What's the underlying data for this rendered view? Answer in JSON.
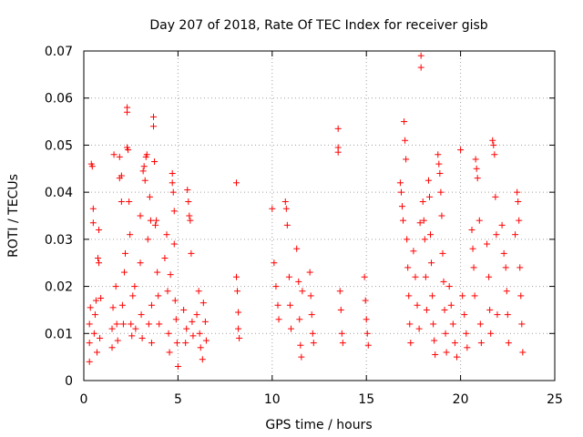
{
  "chart_data": {
    "type": "scatter",
    "title": "Day 207 of 2018, Rate Of TEC Index for receiver gisb",
    "xlabel": "GPS time / hours",
    "ylabel": "ROTI / TECUs",
    "xlim": [
      0,
      25
    ],
    "ylim": [
      0,
      0.07
    ],
    "xticks": [
      0,
      5,
      10,
      15,
      20,
      25
    ],
    "xtick_labels": [
      "0",
      "5",
      "10",
      "15",
      "20",
      "25"
    ],
    "yticks": [
      0,
      0.01,
      0.02,
      0.03,
      0.04,
      0.05,
      0.06,
      0.07
    ],
    "ytick_labels": [
      "0",
      "0.01",
      "0.02",
      "0.03",
      "0.04",
      "0.05",
      "0.06",
      "0.07"
    ],
    "grid": true,
    "marker": "+",
    "color": "#ff0000",
    "series": [
      {
        "points": [
          [
            0.3,
            0.004
          ],
          [
            0.3,
            0.008
          ],
          [
            0.3,
            0.012
          ],
          [
            0.35,
            0.0155
          ],
          [
            0.4,
            0.046
          ],
          [
            0.45,
            0.0455
          ],
          [
            0.5,
            0.0365
          ],
          [
            0.5,
            0.0335
          ],
          [
            0.55,
            0.01
          ],
          [
            0.6,
            0.014
          ],
          [
            0.65,
            0.017
          ],
          [
            0.7,
            0.006
          ],
          [
            0.75,
            0.026
          ],
          [
            0.8,
            0.025
          ],
          [
            0.8,
            0.032
          ],
          [
            0.85,
            0.009
          ],
          [
            0.9,
            0.0175
          ],
          [
            1.5,
            0.007
          ],
          [
            1.5,
            0.011
          ],
          [
            1.55,
            0.0155
          ],
          [
            1.6,
            0.048
          ],
          [
            1.7,
            0.02
          ],
          [
            1.75,
            0.012
          ],
          [
            1.8,
            0.0085
          ],
          [
            1.9,
            0.0475
          ],
          [
            1.9,
            0.043
          ],
          [
            2.0,
            0.0435
          ],
          [
            2.0,
            0.038
          ],
          [
            2.05,
            0.016
          ],
          [
            2.1,
            0.012
          ],
          [
            2.15,
            0.023
          ],
          [
            2.2,
            0.027
          ],
          [
            2.3,
            0.058
          ],
          [
            2.3,
            0.057
          ],
          [
            2.3,
            0.0495
          ],
          [
            2.35,
            0.049
          ],
          [
            2.4,
            0.038
          ],
          [
            2.45,
            0.031
          ],
          [
            2.5,
            0.012
          ],
          [
            2.55,
            0.0095
          ],
          [
            2.6,
            0.018
          ],
          [
            2.7,
            0.02
          ],
          [
            2.75,
            0.011
          ],
          [
            3.0,
            0.025
          ],
          [
            3.0,
            0.035
          ],
          [
            3.05,
            0.014
          ],
          [
            3.1,
            0.009
          ],
          [
            3.15,
            0.0445
          ],
          [
            3.2,
            0.0455
          ],
          [
            3.25,
            0.0425
          ],
          [
            3.3,
            0.0475
          ],
          [
            3.35,
            0.048
          ],
          [
            3.4,
            0.03
          ],
          [
            3.45,
            0.012
          ],
          [
            3.5,
            0.039
          ],
          [
            3.55,
            0.034
          ],
          [
            3.6,
            0.008
          ],
          [
            3.6,
            0.016
          ],
          [
            3.7,
            0.056
          ],
          [
            3.7,
            0.054
          ],
          [
            3.75,
            0.0465
          ],
          [
            3.8,
            0.033
          ],
          [
            3.85,
            0.034
          ],
          [
            3.9,
            0.023
          ],
          [
            3.95,
            0.018
          ],
          [
            4.0,
            0.012
          ],
          [
            4.3,
            0.026
          ],
          [
            4.4,
            0.031
          ],
          [
            4.45,
            0.019
          ],
          [
            4.5,
            0.01
          ],
          [
            4.55,
            0.006
          ],
          [
            4.6,
            0.0225
          ],
          [
            4.7,
            0.044
          ],
          [
            4.7,
            0.042
          ],
          [
            4.75,
            0.04
          ],
          [
            4.8,
            0.036
          ],
          [
            4.8,
            0.029
          ],
          [
            4.85,
            0.017
          ],
          [
            4.9,
            0.013
          ],
          [
            4.95,
            0.008
          ],
          [
            5.0,
            0.003
          ],
          [
            5.3,
            0.015
          ],
          [
            5.4,
            0.008
          ],
          [
            5.45,
            0.011
          ],
          [
            5.5,
            0.0405
          ],
          [
            5.55,
            0.038
          ],
          [
            5.6,
            0.035
          ],
          [
            5.65,
            0.034
          ],
          [
            5.7,
            0.027
          ],
          [
            5.75,
            0.0125
          ],
          [
            5.8,
            0.0095
          ],
          [
            6.0,
            0.014
          ],
          [
            6.1,
            0.019
          ],
          [
            6.15,
            0.01
          ],
          [
            6.2,
            0.007
          ],
          [
            6.3,
            0.0045
          ],
          [
            6.35,
            0.0165
          ],
          [
            6.45,
            0.0125
          ],
          [
            6.5,
            0.0085
          ],
          [
            8.1,
            0.042
          ],
          [
            8.1,
            0.022
          ],
          [
            8.15,
            0.019
          ],
          [
            8.2,
            0.0145
          ],
          [
            8.2,
            0.011
          ],
          [
            8.25,
            0.009
          ],
          [
            10.0,
            0.0365
          ],
          [
            10.1,
            0.025
          ],
          [
            10.2,
            0.02
          ],
          [
            10.3,
            0.016
          ],
          [
            10.35,
            0.013
          ],
          [
            10.7,
            0.038
          ],
          [
            10.75,
            0.0365
          ],
          [
            10.8,
            0.033
          ],
          [
            10.9,
            0.022
          ],
          [
            10.95,
            0.016
          ],
          [
            11.0,
            0.011
          ],
          [
            11.3,
            0.028
          ],
          [
            11.4,
            0.021
          ],
          [
            11.45,
            0.013
          ],
          [
            11.5,
            0.0075
          ],
          [
            11.55,
            0.005
          ],
          [
            11.6,
            0.019
          ],
          [
            12.0,
            0.023
          ],
          [
            12.05,
            0.018
          ],
          [
            12.1,
            0.014
          ],
          [
            12.15,
            0.01
          ],
          [
            12.2,
            0.008
          ],
          [
            13.5,
            0.0535
          ],
          [
            13.5,
            0.0495
          ],
          [
            13.5,
            0.0485
          ],
          [
            13.6,
            0.019
          ],
          [
            13.65,
            0.015
          ],
          [
            13.7,
            0.01
          ],
          [
            13.75,
            0.008
          ],
          [
            14.9,
            0.022
          ],
          [
            14.95,
            0.017
          ],
          [
            15.0,
            0.013
          ],
          [
            15.05,
            0.01
          ],
          [
            15.1,
            0.0075
          ],
          [
            16.8,
            0.042
          ],
          [
            16.85,
            0.04
          ],
          [
            16.9,
            0.037
          ],
          [
            16.95,
            0.034
          ],
          [
            17.0,
            0.055
          ],
          [
            17.05,
            0.051
          ],
          [
            17.1,
            0.047
          ],
          [
            17.15,
            0.03
          ],
          [
            17.2,
            0.024
          ],
          [
            17.25,
            0.018
          ],
          [
            17.3,
            0.012
          ],
          [
            17.35,
            0.008
          ],
          [
            17.5,
            0.0275
          ],
          [
            17.6,
            0.022
          ],
          [
            17.7,
            0.016
          ],
          [
            17.8,
            0.011
          ],
          [
            17.85,
            0.0335
          ],
          [
            17.9,
            0.069
          ],
          [
            17.9,
            0.0665
          ],
          [
            18.0,
            0.038
          ],
          [
            18.05,
            0.034
          ],
          [
            18.1,
            0.03
          ],
          [
            18.15,
            0.022
          ],
          [
            18.2,
            0.015
          ],
          [
            18.3,
            0.0425
          ],
          [
            18.35,
            0.039
          ],
          [
            18.4,
            0.031
          ],
          [
            18.45,
            0.025
          ],
          [
            18.5,
            0.018
          ],
          [
            18.55,
            0.012
          ],
          [
            18.6,
            0.0085
          ],
          [
            18.65,
            0.0055
          ],
          [
            18.8,
            0.048
          ],
          [
            18.85,
            0.046
          ],
          [
            18.9,
            0.044
          ],
          [
            18.95,
            0.04
          ],
          [
            19.0,
            0.035
          ],
          [
            19.05,
            0.027
          ],
          [
            19.1,
            0.021
          ],
          [
            19.15,
            0.015
          ],
          [
            19.2,
            0.01
          ],
          [
            19.25,
            0.006
          ],
          [
            19.4,
            0.02
          ],
          [
            19.5,
            0.016
          ],
          [
            19.6,
            0.012
          ],
          [
            19.7,
            0.008
          ],
          [
            19.8,
            0.005
          ],
          [
            20.0,
            0.049
          ],
          [
            20.1,
            0.018
          ],
          [
            20.2,
            0.014
          ],
          [
            20.3,
            0.01
          ],
          [
            20.35,
            0.007
          ],
          [
            20.6,
            0.032
          ],
          [
            20.65,
            0.028
          ],
          [
            20.7,
            0.024
          ],
          [
            20.75,
            0.018
          ],
          [
            20.8,
            0.047
          ],
          [
            20.85,
            0.045
          ],
          [
            20.9,
            0.043
          ],
          [
            21.0,
            0.034
          ],
          [
            21.05,
            0.012
          ],
          [
            21.1,
            0.008
          ],
          [
            21.4,
            0.029
          ],
          [
            21.5,
            0.022
          ],
          [
            21.55,
            0.015
          ],
          [
            21.6,
            0.01
          ],
          [
            21.7,
            0.051
          ],
          [
            21.75,
            0.05
          ],
          [
            21.8,
            0.048
          ],
          [
            21.85,
            0.039
          ],
          [
            21.9,
            0.031
          ],
          [
            21.95,
            0.014
          ],
          [
            22.2,
            0.033
          ],
          [
            22.3,
            0.027
          ],
          [
            22.4,
            0.024
          ],
          [
            22.45,
            0.019
          ],
          [
            22.5,
            0.014
          ],
          [
            22.55,
            0.008
          ],
          [
            22.9,
            0.031
          ],
          [
            23.0,
            0.04
          ],
          [
            23.05,
            0.038
          ],
          [
            23.1,
            0.034
          ],
          [
            23.15,
            0.024
          ],
          [
            23.2,
            0.018
          ],
          [
            23.25,
            0.012
          ],
          [
            23.3,
            0.006
          ]
        ]
      }
    ]
  }
}
